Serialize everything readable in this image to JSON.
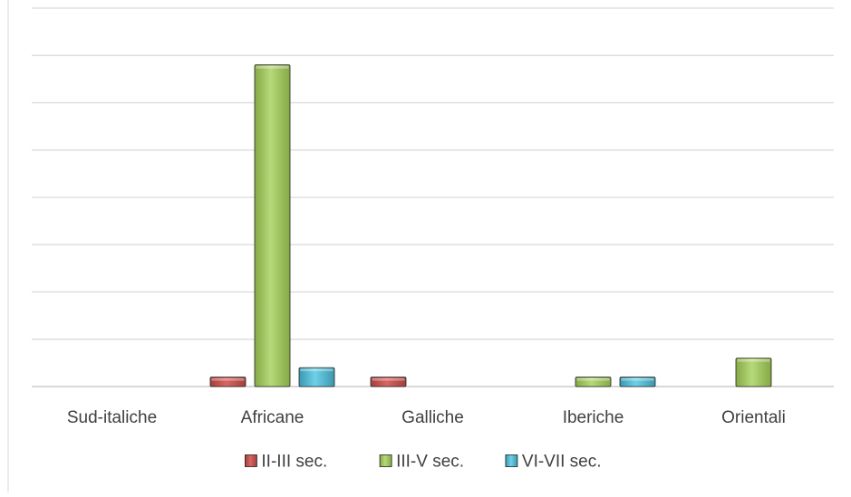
{
  "chart_data": {
    "type": "bar",
    "categories": [
      "Sud-italiche",
      "Africane",
      "Galliche",
      "Iberiche",
      "Orientali"
    ],
    "series": [
      {
        "name": "II-III sec.",
        "color": "#c0504d",
        "values": [
          0,
          2,
          2,
          0,
          0
        ]
      },
      {
        "name": "III-V sec.",
        "color": "#9bbb59",
        "values": [
          0,
          68,
          0,
          2,
          6
        ]
      },
      {
        "name": "VI-VII sec.",
        "color": "#4bacc6",
        "values": [
          0,
          4,
          0,
          2,
          0
        ]
      }
    ],
    "ylim": [
      0,
      80
    ],
    "y_gridlines": 8,
    "grid": true,
    "legend_position": "bottom",
    "title": "",
    "xlabel": "",
    "ylabel": ""
  }
}
